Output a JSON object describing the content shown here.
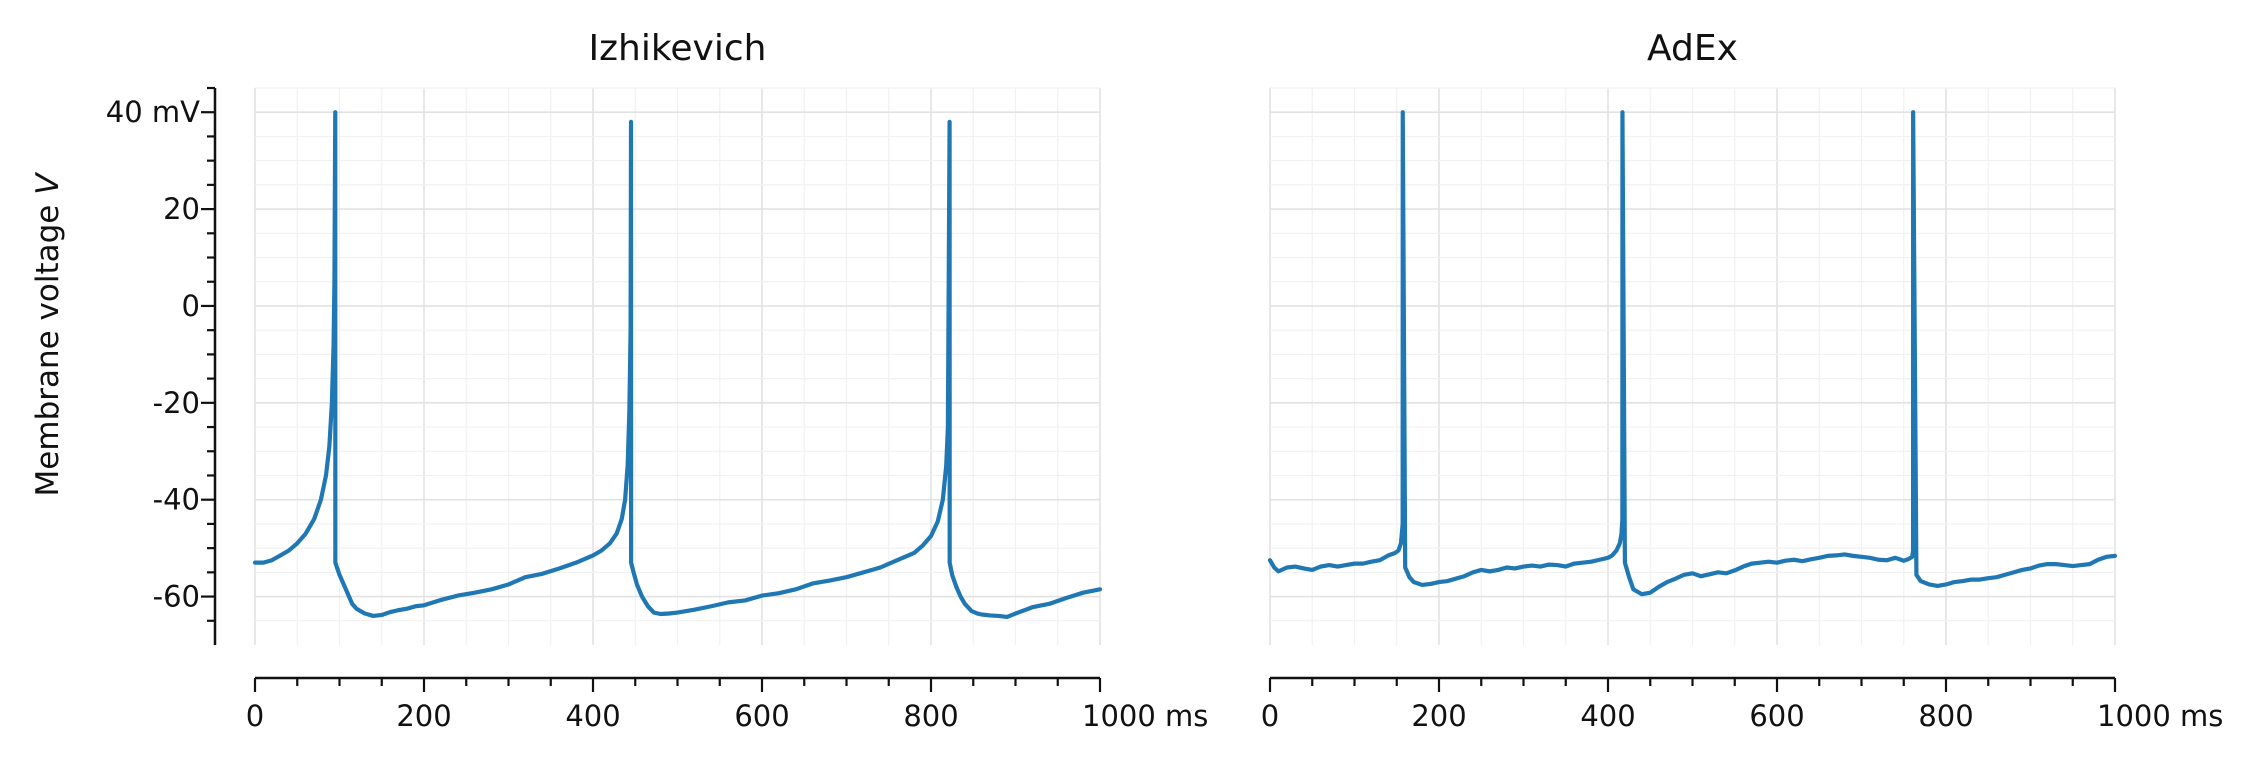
{
  "colors": {
    "line": "#1f77b4",
    "grid_major": "#e2e2e2",
    "grid_minor": "#f1f1f1",
    "axis": "#111111"
  },
  "ylabel_prefix": "Membrane voltage ",
  "ylabel_var": "V",
  "chart_data": [
    {
      "type": "line",
      "title": "Izhikevich",
      "xlabel": "",
      "ylabel": "Membrane voltage V",
      "xlim": [
        0,
        1000
      ],
      "ylim": [
        -70,
        45
      ],
      "xticks": [
        0,
        200,
        400,
        600,
        800,
        1000
      ],
      "xtick_labels": [
        "0",
        "200",
        "400",
        "600",
        "800",
        "1000 ms"
      ],
      "yticks": [
        40,
        20,
        0,
        -20,
        -40,
        -60
      ],
      "ytick_labels": [
        "40 mV",
        "20",
        "0",
        "-20",
        "-40",
        "-60"
      ],
      "grid": true,
      "series": [
        {
          "x": [
            0,
            10,
            20,
            30,
            40,
            50,
            60,
            70,
            78,
            84,
            88,
            91,
            93,
            94,
            95,
            95.1,
            97,
            100,
            105,
            110,
            115,
            120,
            130,
            140,
            150,
            160,
            170,
            180,
            190,
            200,
            220,
            240,
            260,
            280,
            300,
            320,
            340,
            360,
            380,
            400,
            410,
            420,
            428,
            434,
            438,
            441,
            443,
            444.5,
            445,
            445.1,
            448,
            452,
            458,
            465,
            472,
            480,
            490,
            500,
            520,
            540,
            560,
            580,
            600,
            620,
            640,
            660,
            680,
            700,
            720,
            740,
            760,
            780,
            790,
            800,
            808,
            814,
            818,
            820,
            822,
            822.1,
            825,
            830,
            835,
            840,
            848,
            855,
            860,
            870,
            880,
            890,
            900,
            920,
            940,
            960,
            980,
            1000
          ],
          "y": [
            -53,
            -53,
            -52.5,
            -51.5,
            -50.5,
            -49,
            -47,
            -44,
            -40,
            -35,
            -29,
            -20,
            -8,
            5,
            40,
            -53,
            -54,
            -55.5,
            -57.5,
            -59.5,
            -61.5,
            -62.5,
            -63.5,
            -64,
            -63.8,
            -63.2,
            -62.8,
            -62.5,
            -62,
            -61.8,
            -60.7,
            -59.8,
            -59.2,
            -58.5,
            -57.5,
            -56,
            -55.3,
            -54.2,
            -53,
            -51.5,
            -50.5,
            -49,
            -47,
            -44,
            -40,
            -33,
            -22,
            -5,
            38,
            -53,
            -55,
            -57.5,
            -60,
            -62,
            -63.3,
            -63.6,
            -63.5,
            -63.3,
            -62.7,
            -62,
            -61.2,
            -60.8,
            -59.8,
            -59.3,
            -58.5,
            -57.3,
            -56.7,
            -56,
            -55,
            -54,
            -52.5,
            -51,
            -49.5,
            -47.5,
            -44.5,
            -40,
            -33,
            -25,
            38,
            -53,
            -55.5,
            -58,
            -60,
            -61.5,
            -63,
            -63.5,
            -63.7,
            -63.9,
            -64,
            -64.2,
            -63.5,
            -62.2,
            -61.5,
            -60.3,
            -59.2,
            -58.5
          ]
        }
      ]
    },
    {
      "type": "line",
      "title": "AdEx",
      "xlabel": "",
      "ylabel": "",
      "xlim": [
        0,
        1000
      ],
      "ylim": [
        -70,
        45
      ],
      "xticks": [
        0,
        200,
        400,
        600,
        800,
        1000
      ],
      "xtick_labels": [
        "0",
        "200",
        "400",
        "600",
        "800",
        "1000 ms"
      ],
      "grid": true,
      "series": [
        {
          "x": [
            0,
            5,
            10,
            20,
            30,
            40,
            50,
            60,
            70,
            80,
            90,
            100,
            110,
            120,
            130,
            140,
            148,
            152,
            155,
            157,
            157.1,
            160,
            165,
            170,
            180,
            190,
            200,
            210,
            220,
            230,
            240,
            250,
            260,
            270,
            280,
            290,
            300,
            310,
            320,
            330,
            340,
            350,
            360,
            370,
            380,
            390,
            400,
            405,
            410,
            414,
            416,
            417,
            417.1,
            420,
            425,
            430,
            440,
            450,
            460,
            470,
            480,
            490,
            500,
            510,
            520,
            530,
            540,
            550,
            560,
            570,
            580,
            590,
            600,
            610,
            620,
            630,
            640,
            650,
            660,
            670,
            680,
            690,
            700,
            710,
            720,
            730,
            740,
            745,
            750,
            755,
            760,
            761,
            761.1,
            765,
            770,
            780,
            790,
            800,
            810,
            820,
            830,
            840,
            850,
            860,
            870,
            880,
            890,
            900,
            910,
            920,
            930,
            940,
            950,
            960,
            970,
            980,
            990,
            1000
          ],
          "y": [
            -52.5,
            -54,
            -54.8,
            -54,
            -53.8,
            -54.2,
            -54.5,
            -53.8,
            -53.5,
            -53.8,
            -53.5,
            -53.2,
            -53.2,
            -52.8,
            -52.5,
            -51.5,
            -51,
            -50.5,
            -49,
            -45,
            40,
            -54,
            -56,
            -57,
            -57.6,
            -57.4,
            -57,
            -56.8,
            -56.3,
            -55.8,
            -55,
            -54.5,
            -54.8,
            -54.5,
            -54,
            -54.2,
            -53.8,
            -53.6,
            -53.8,
            -53.4,
            -53.5,
            -53.8,
            -53.2,
            -53,
            -52.8,
            -52.4,
            -52,
            -51.5,
            -50.5,
            -49,
            -47,
            -44,
            40,
            -53,
            -56,
            -58.5,
            -59.5,
            -59.2,
            -58,
            -57,
            -56.3,
            -55.5,
            -55.2,
            -55.8,
            -55.4,
            -55,
            -55.2,
            -54.6,
            -53.8,
            -53.2,
            -53,
            -52.8,
            -53,
            -52.6,
            -52.4,
            -52.7,
            -52.3,
            -52,
            -51.6,
            -51.5,
            -51.3,
            -51.6,
            -51.8,
            -52,
            -52.4,
            -52.5,
            -52,
            -52.3,
            -52.6,
            -52.3,
            -51.8,
            -50.5,
            40,
            -55.5,
            -56.8,
            -57.5,
            -57.8,
            -57.5,
            -57,
            -56.8,
            -56.5,
            -56.5,
            -56.2,
            -56,
            -55.5,
            -55,
            -54.5,
            -54.2,
            -53.6,
            -53.3,
            -53.3,
            -53.5,
            -53.7,
            -53.5,
            -53.3,
            -52.4,
            -51.8,
            -51.6
          ]
        }
      ]
    }
  ]
}
